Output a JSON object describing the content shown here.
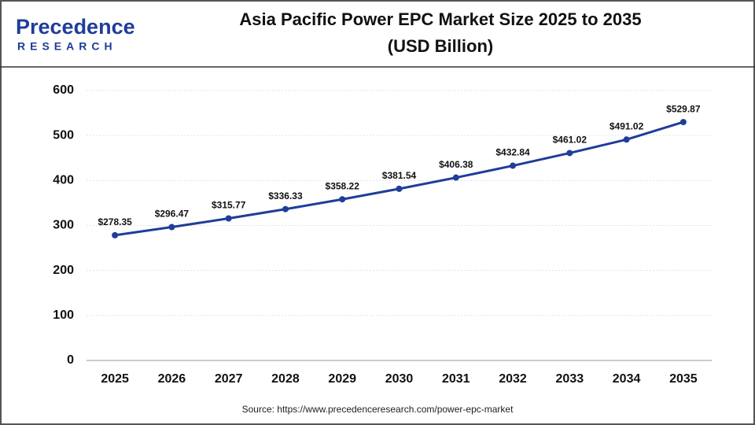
{
  "logo": {
    "name": "Precedence",
    "tagline": "RESEARCH"
  },
  "chart_data": {
    "type": "line",
    "title": "Asia Pacific Power EPC Market Size 2025 to 2035",
    "subtitle": "(USD Billion)",
    "categories": [
      "2025",
      "2026",
      "2027",
      "2028",
      "2029",
      "2030",
      "2031",
      "2032",
      "2033",
      "2034",
      "2035"
    ],
    "series": [
      {
        "color": "#1f3d99",
        "values": [
          278.35,
          296.47,
          315.77,
          336.33,
          358.22,
          381.54,
          406.38,
          432.84,
          461.02,
          491.02,
          529.87
        ],
        "value_labels": [
          "$278.35",
          "$296.47",
          "$315.77",
          "$336.33",
          "$358.22",
          "$381.54",
          "$406.38",
          "$432.84",
          "$461.02",
          "$491.02",
          "$529.87"
        ]
      }
    ],
    "ylim": [
      0,
      600
    ],
    "yticks": [
      0,
      100,
      200,
      300,
      400,
      500,
      600
    ],
    "grid": true,
    "source": "Source: https://www.precedenceresearch.com/power-epc-market"
  }
}
